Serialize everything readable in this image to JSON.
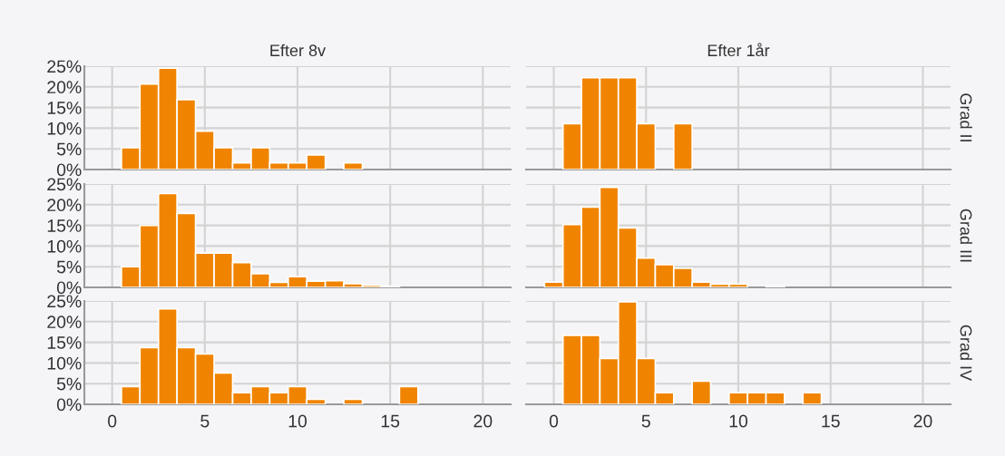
{
  "chart_data": [
    {
      "type": "histogram",
      "title": "Efter 8v",
      "bins": [
        -0.5,
        0.5,
        1.5,
        2.5,
        3.5,
        4.5,
        5.5,
        6.5,
        7.5,
        8.5,
        9.5,
        10.5,
        11.5,
        12.5,
        13.5,
        14.5,
        15.5,
        16.5,
        17.5,
        18.5,
        19.5,
        20.5
      ],
      "values": [
        0,
        5.3,
        20.7,
        24.5,
        16.9,
        9.3,
        5.3,
        1.6,
        5.3,
        1.6,
        1.6,
        3.5,
        0,
        1.6,
        0,
        0,
        0,
        0,
        0,
        0,
        0
      ],
      "color": "#f08400",
      "xlim": [
        -1.5,
        21.5
      ],
      "ylim": [
        0,
        25
      ],
      "xticks": [
        {
          "value": 0,
          "label": null
        },
        {
          "value": 5,
          "label": null
        },
        {
          "value": 10,
          "label": null
        },
        {
          "value": 15,
          "label": null
        },
        {
          "value": 20,
          "label": null
        }
      ],
      "yticks": [
        {
          "value": 0,
          "label": "0%"
        },
        {
          "value": 5,
          "label": "5%"
        },
        {
          "value": 10,
          "label": "10%"
        },
        {
          "value": 15,
          "label": "15%"
        },
        {
          "value": 20,
          "label": "20%"
        },
        {
          "value": 25,
          "label": "25%"
        }
      ],
      "grid": true,
      "tick_labels": "y"
    },
    {
      "type": "histogram",
      "title": "Efter 1år",
      "annotations": [
        "Grad II"
      ],
      "bins": [
        -0.5,
        0.5,
        1.5,
        2.5,
        3.5,
        4.5,
        5.5,
        6.5,
        7.5,
        8.5,
        9.5,
        10.5,
        11.5,
        12.5,
        13.5,
        14.5,
        15.5,
        16.5,
        17.5,
        18.5,
        19.5,
        20.5
      ],
      "values": [
        0,
        11.1,
        22.2,
        22.2,
        22.2,
        11.1,
        0,
        11.1,
        0,
        0,
        0,
        0,
        0,
        0,
        0,
        0,
        0,
        0,
        0,
        0,
        0
      ],
      "color": "#f08400",
      "xlim": [
        -1.5,
        21.5
      ],
      "ylim": [
        0,
        25
      ],
      "xticks": [
        {
          "value": 0,
          "label": null
        },
        {
          "value": 5,
          "label": null
        },
        {
          "value": 10,
          "label": null
        },
        {
          "value": 15,
          "label": null
        },
        {
          "value": 20,
          "label": null
        }
      ],
      "yticks": [
        {
          "value": 0,
          "label": null
        },
        {
          "value": 5,
          "label": null
        },
        {
          "value": 10,
          "label": null
        },
        {
          "value": 15,
          "label": null
        },
        {
          "value": 20,
          "label": null
        },
        {
          "value": 25,
          "label": null
        }
      ],
      "grid": true,
      "tick_labels": false
    },
    {
      "type": "histogram",
      "bins": [
        -0.5,
        0.5,
        1.5,
        2.5,
        3.5,
        4.5,
        5.5,
        6.5,
        7.5,
        8.5,
        9.5,
        10.5,
        11.5,
        12.5,
        13.5,
        14.5,
        15.5,
        16.5,
        17.5,
        18.5,
        19.5,
        20.5
      ],
      "values": [
        null,
        5.0,
        15.0,
        22.7,
        17.9,
        8.3,
        8.3,
        6.0,
        3.3,
        1.2,
        2.6,
        1.5,
        1.6,
        0.9,
        0.5,
        0.3,
        0,
        0,
        0,
        0,
        null
      ],
      "color": "#f08400",
      "xlim": [
        -1.5,
        21.5
      ],
      "ylim": [
        0,
        25
      ],
      "xticks": [
        {
          "value": 0,
          "label": null
        },
        {
          "value": 5,
          "label": null
        },
        {
          "value": 10,
          "label": null
        },
        {
          "value": 15,
          "label": null
        },
        {
          "value": 20,
          "label": null
        }
      ],
      "yticks": [
        {
          "value": 0,
          "label": "0%"
        },
        {
          "value": 5,
          "label": "5%"
        },
        {
          "value": 10,
          "label": "10%"
        },
        {
          "value": 15,
          "label": "15%"
        },
        {
          "value": 20,
          "label": "20%"
        },
        {
          "value": 25,
          "label": "25%"
        }
      ],
      "grid": true,
      "tick_labels": "y"
    },
    {
      "type": "histogram",
      "annotations": [
        "Grad III"
      ],
      "bins": [
        -0.5,
        0.5,
        1.5,
        2.5,
        3.5,
        4.5,
        5.5,
        6.5,
        7.5,
        8.5,
        9.5,
        10.5,
        11.5,
        12.5,
        13.5,
        14.5,
        15.5,
        16.5,
        17.5,
        18.5,
        19.5,
        20.5
      ],
      "values": [
        1.3,
        15.2,
        19.4,
        24.2,
        14.4,
        7.1,
        5.5,
        4.6,
        1.3,
        0.8,
        0.8,
        0,
        0.3,
        0,
        0,
        0,
        0,
        0,
        0,
        0,
        0
      ],
      "color": "#f08400",
      "xlim": [
        -1.5,
        21.5
      ],
      "ylim": [
        0,
        25
      ],
      "xticks": [
        {
          "value": 0,
          "label": null
        },
        {
          "value": 5,
          "label": null
        },
        {
          "value": 10,
          "label": null
        },
        {
          "value": 15,
          "label": null
        },
        {
          "value": 20,
          "label": null
        }
      ],
      "yticks": [
        {
          "value": 0,
          "label": null
        },
        {
          "value": 5,
          "label": null
        },
        {
          "value": 10,
          "label": null
        },
        {
          "value": 15,
          "label": null
        },
        {
          "value": 20,
          "label": null
        },
        {
          "value": 25,
          "label": null
        }
      ],
      "grid": true,
      "tick_labels": false
    },
    {
      "type": "histogram",
      "bins": [
        -0.5,
        0.5,
        1.5,
        2.5,
        3.5,
        4.5,
        5.5,
        6.5,
        7.5,
        8.5,
        9.5,
        10.5,
        11.5,
        12.5,
        13.5,
        14.5,
        15.5,
        16.5,
        17.5,
        18.5,
        19.5,
        20.5
      ],
      "values": [
        0,
        4.3,
        13.7,
        23.1,
        13.7,
        12.2,
        7.6,
        2.8,
        4.3,
        2.8,
        4.3,
        1.2,
        0,
        1.2,
        0,
        0,
        4.3,
        0,
        0,
        0,
        0
      ],
      "color": "#f08400",
      "xlim": [
        -1.5,
        21.5
      ],
      "ylim": [
        0,
        25
      ],
      "xticks": [
        0,
        5,
        10,
        15,
        20
      ],
      "yticks": [
        {
          "value": 0,
          "label": "0%"
        },
        {
          "value": 5,
          "label": "5%"
        },
        {
          "value": 10,
          "label": "10%"
        },
        {
          "value": 15,
          "label": "15%"
        },
        {
          "value": 20,
          "label": "20%"
        },
        {
          "value": 25,
          "label": "25%"
        }
      ],
      "grid": true
    },
    {
      "type": "histogram",
      "annotations": [
        "Grad IV"
      ],
      "bins": [
        -0.5,
        0.5,
        1.5,
        2.5,
        3.5,
        4.5,
        5.5,
        6.5,
        7.5,
        8.5,
        9.5,
        10.5,
        11.5,
        12.5,
        13.5,
        14.5,
        15.5,
        16.5,
        17.5,
        18.5,
        19.5,
        20.5
      ],
      "values": [
        0,
        16.7,
        16.7,
        11.1,
        24.8,
        11.1,
        2.8,
        0,
        5.6,
        0,
        2.8,
        2.8,
        2.8,
        0,
        2.8,
        0,
        0,
        0,
        0,
        0,
        0
      ],
      "color": "#f08400",
      "xlim": [
        -1.5,
        21.5
      ],
      "ylim": [
        0,
        25
      ],
      "xticks": [
        0,
        5,
        10,
        15,
        20
      ],
      "yticks": [
        {
          "value": 0,
          "label": null
        },
        {
          "value": 5,
          "label": null
        },
        {
          "value": 10,
          "label": null
        },
        {
          "value": 15,
          "label": null
        },
        {
          "value": 20,
          "label": null
        },
        {
          "value": 25,
          "label": null
        }
      ],
      "grid": true,
      "tick_labels": "x"
    }
  ]
}
